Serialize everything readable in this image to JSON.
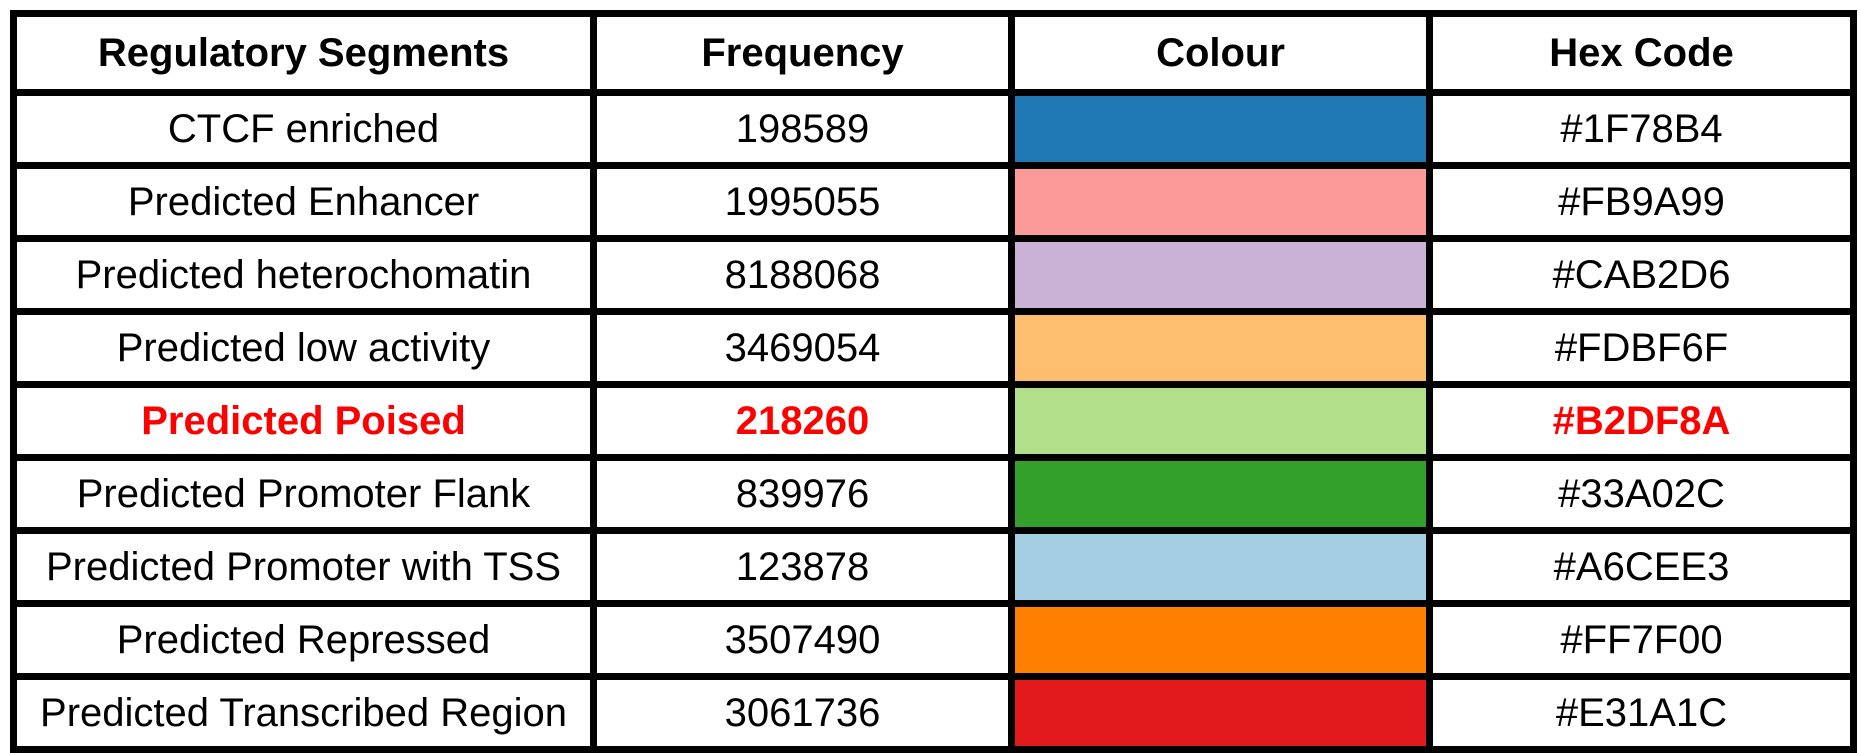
{
  "table": {
    "headers": [
      "Regulatory Segments",
      "Frequency",
      "Colour",
      "Hex Code"
    ],
    "rows": [
      {
        "segment": "CTCF enriched",
        "frequency": "198589",
        "color": "#1F78B4",
        "hex": "#1F78B4",
        "highlighted": false
      },
      {
        "segment": "Predicted Enhancer",
        "frequency": "1995055",
        "color": "#FB9A99",
        "hex": "#FB9A99",
        "highlighted": false
      },
      {
        "segment": "Predicted heterochomatin",
        "frequency": "8188068",
        "color": "#CAB2D6",
        "hex": "#CAB2D6",
        "highlighted": false
      },
      {
        "segment": "Predicted low activity",
        "frequency": "3469054",
        "color": "#FDBF6F",
        "hex": "#FDBF6F",
        "highlighted": false
      },
      {
        "segment": "Predicted Poised",
        "frequency": "218260",
        "color": "#B2DF8A",
        "hex": "#B2DF8A",
        "highlighted": true
      },
      {
        "segment": "Predicted Promoter Flank",
        "frequency": "839976",
        "color": "#33A02C",
        "hex": "#33A02C",
        "highlighted": false
      },
      {
        "segment": "Predicted Promoter with TSS",
        "frequency": "123878",
        "color": "#A6CEE3",
        "hex": "#A6CEE3",
        "highlighted": false
      },
      {
        "segment": "Predicted Repressed",
        "frequency": "3507490",
        "color": "#FF7F00",
        "hex": "#FF7F00",
        "highlighted": false
      },
      {
        "segment": "Predicted Transcribed Region",
        "frequency": "3061736",
        "color": "#E31A1C",
        "hex": "#E31A1C",
        "highlighted": false
      }
    ]
  },
  "colors": {
    "highlight_text": "#FF0000",
    "border": "#000000"
  }
}
